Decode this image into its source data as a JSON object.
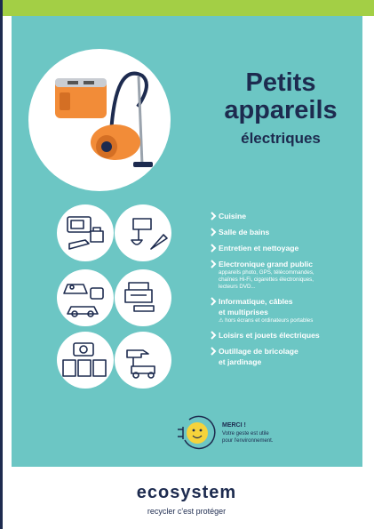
{
  "poster": {
    "title": [
      "Petits",
      "appareils"
    ],
    "subtitle": "électriques",
    "items": [
      {
        "label": [
          "Cuisine"
        ]
      },
      {
        "label": [
          "Salle de bains"
        ]
      },
      {
        "label": [
          "Entretien et nettoyage"
        ]
      },
      {
        "label": [
          "Electronique grand public"
        ],
        "sub": [
          "appareils photo, GPS, télécommandes,",
          "chaînes Hi-Fi, cigarettes électroniques,",
          "lecteurs DVD..."
        ]
      },
      {
        "label": [
          "Informatique, câbles",
          "et multiprises"
        ],
        "sub": [
          "⚠ hors écrans et ordinateurs portables"
        ]
      },
      {
        "label": [
          "Loisirs et jouets électriques"
        ]
      },
      {
        "label": [
          "Outillage de bricolage",
          "et jardinage"
        ]
      }
    ],
    "thanks": {
      "title": "MERCI !",
      "lines": [
        "Votre geste est utile",
        "pour l'environnement."
      ]
    },
    "footer": {
      "logo": "ecosystem",
      "tagline": "recycler c'est protéger"
    }
  }
}
